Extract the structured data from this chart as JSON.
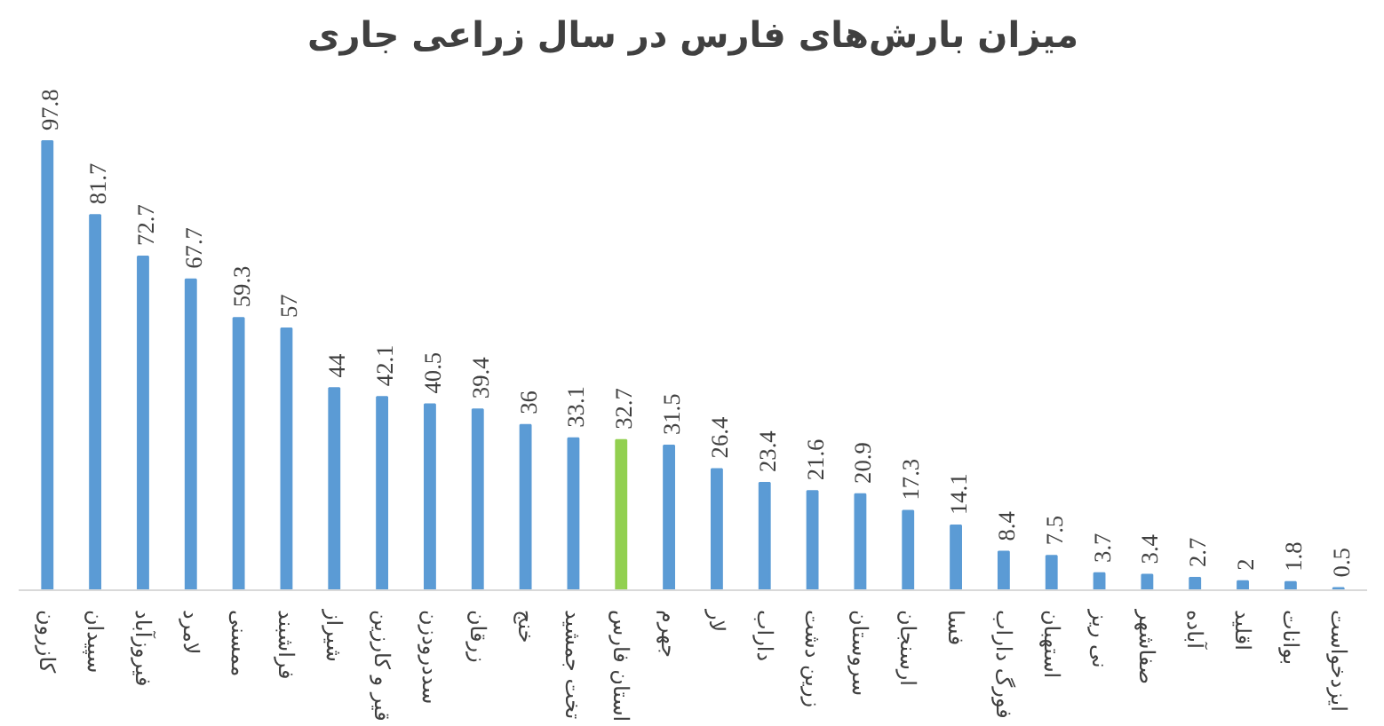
{
  "chart_data": {
    "type": "bar",
    "title": "میزان بارش‌های فارس در سال زراعی جاری",
    "categories": [
      "کازرون",
      "سپیدان",
      "فیروزآباد",
      "لامرد",
      "ممسنی",
      "فراشبند",
      "شیراز",
      "قیر و کارزین",
      "سددرودزن",
      "زرقان",
      "خنج",
      "تخت جمشید",
      "استان فارس",
      "جهرم",
      "لار",
      "داراب",
      "زرین دشت",
      "سروستان",
      "ارسنجان",
      "فسا",
      "فورگ داراب",
      "استهبان",
      "نی ریز",
      "صفاشهر",
      "آباده",
      "اقلید",
      "بوانات",
      "ایزدخواست"
    ],
    "values": [
      97.8,
      81.7,
      72.7,
      67.7,
      59.3,
      57,
      44,
      42.1,
      40.5,
      39.4,
      36,
      33.1,
      32.7,
      31.5,
      26.4,
      23.4,
      21.6,
      20.9,
      17.3,
      14.1,
      8.4,
      7.5,
      3.7,
      3.4,
      2.7,
      2,
      1.8,
      0.5
    ],
    "colors": [
      "#5b9bd5",
      "#5b9bd5",
      "#5b9bd5",
      "#5b9bd5",
      "#5b9bd5",
      "#5b9bd5",
      "#5b9bd5",
      "#5b9bd5",
      "#5b9bd5",
      "#5b9bd5",
      "#5b9bd5",
      "#5b9bd5",
      "#92d050",
      "#5b9bd5",
      "#5b9bd5",
      "#5b9bd5",
      "#5b9bd5",
      "#5b9bd5",
      "#5b9bd5",
      "#5b9bd5",
      "#5b9bd5",
      "#5b9bd5",
      "#5b9bd5",
      "#5b9bd5",
      "#5b9bd5",
      "#5b9bd5",
      "#5b9bd5",
      "#5b9bd5"
    ],
    "data_labels": true,
    "grid": false
  }
}
